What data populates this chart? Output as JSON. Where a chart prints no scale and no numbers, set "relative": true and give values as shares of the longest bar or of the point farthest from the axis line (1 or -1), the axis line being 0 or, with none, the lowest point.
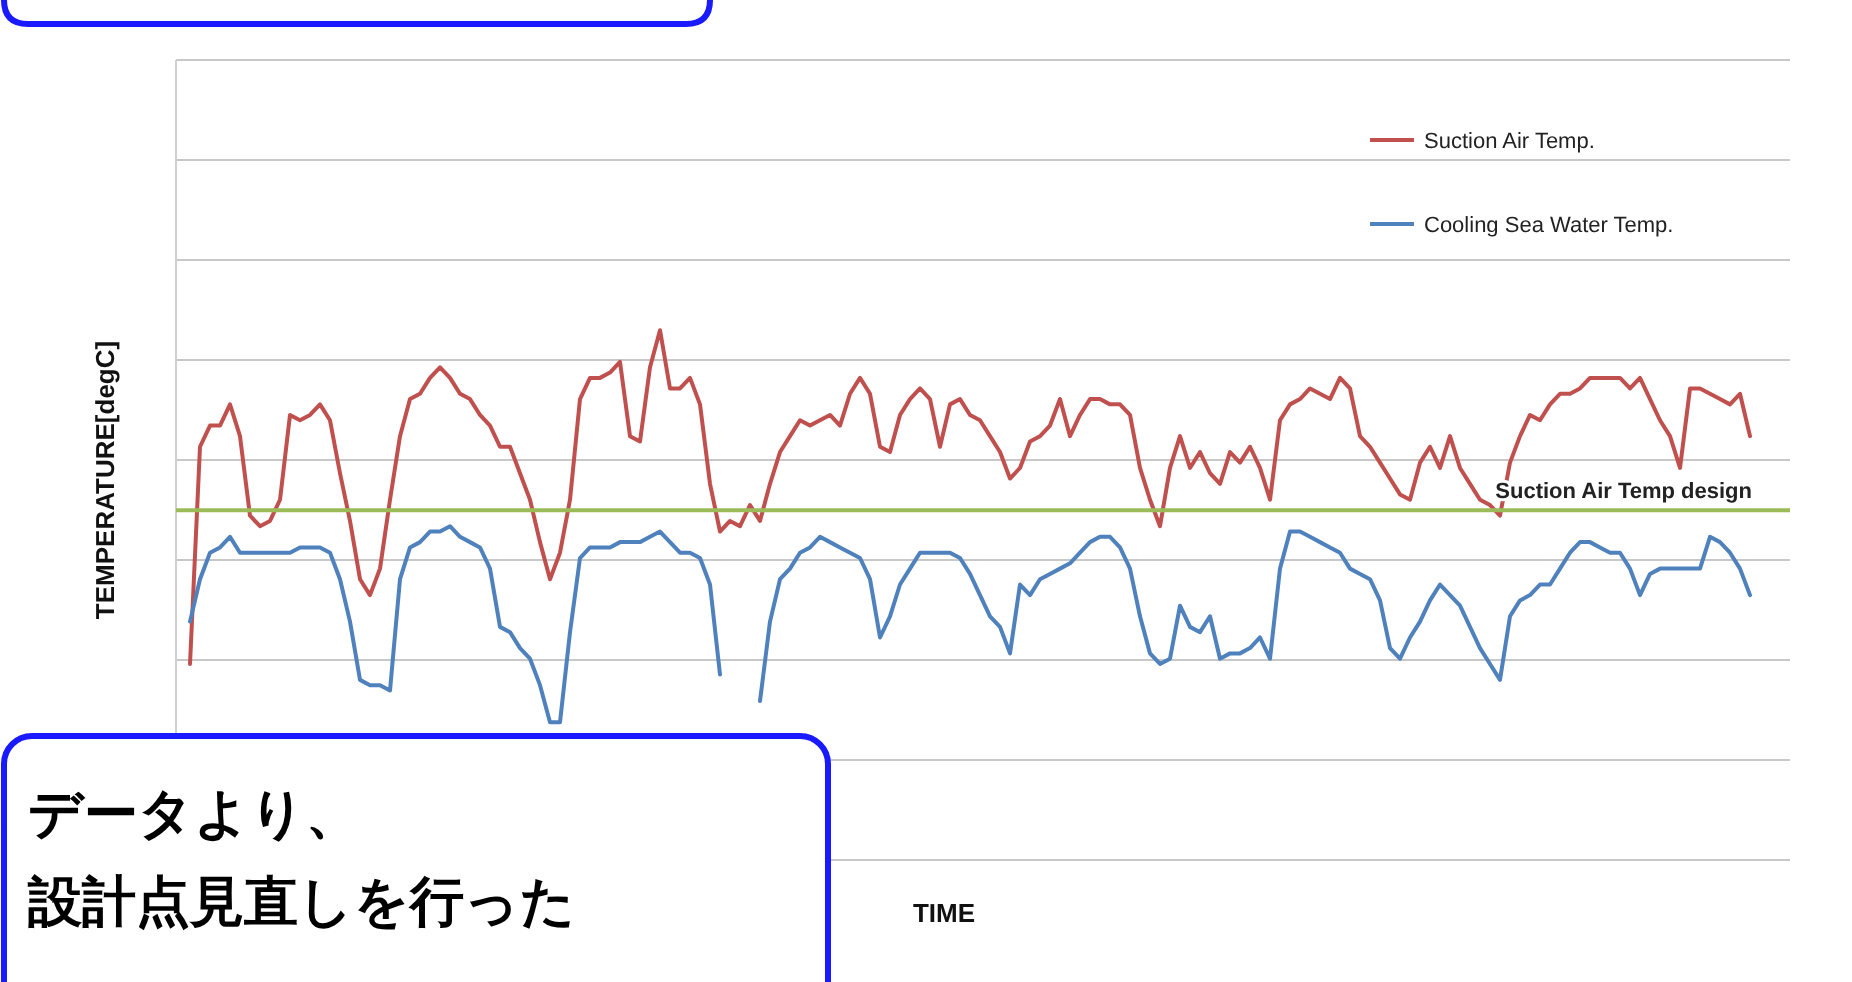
{
  "chart_data": {
    "type": "line",
    "relative": true,
    "ylabel": "TEMPERATURE[degC]",
    "xlabel": "TIME",
    "grid": "y",
    "legend": "top right",
    "line_style": "solid",
    "marker": "none",
    "categories": [
      null,
      null,
      null,
      null,
      null,
      null,
      null,
      null,
      null,
      null,
      null,
      null,
      null,
      null,
      null,
      null,
      null,
      null,
      null,
      null,
      null,
      null,
      null,
      null,
      null,
      null,
      null,
      null,
      null,
      null,
      null,
      null,
      null,
      null,
      null,
      null,
      null,
      null,
      null,
      null,
      null,
      null,
      null,
      null,
      null,
      null,
      null,
      null,
      null,
      null,
      null,
      null,
      null,
      null,
      null,
      null,
      null,
      null,
      null,
      null,
      null,
      null,
      null,
      null,
      null,
      null,
      null,
      null,
      null,
      null,
      null,
      null,
      null,
      null,
      null,
      null,
      null,
      null,
      null,
      null,
      null,
      null,
      null,
      null,
      null,
      null,
      null,
      null,
      null,
      null,
      null,
      null,
      null,
      null,
      null,
      null,
      null,
      null,
      null,
      null,
      null,
      null,
      null,
      null,
      null,
      null,
      null,
      null,
      null,
      null,
      null,
      null,
      null,
      null,
      null,
      null,
      null,
      null,
      null,
      null,
      null,
      null,
      null,
      null,
      null,
      null,
      null,
      null,
      null,
      null,
      null,
      null,
      null,
      null,
      null,
      null,
      null,
      null,
      null,
      null,
      null,
      null,
      null,
      null,
      null,
      null,
      null,
      null,
      null,
      null,
      null,
      null,
      null,
      null,
      null,
      null,
      null
    ],
    "series": [
      {
        "name": "Suction Air Temp.",
        "color": "#c0504d",
        "values": [
          0.37,
          0.78,
          0.82,
          0.82,
          0.86,
          0.8,
          0.65,
          0.63,
          0.64,
          0.68,
          0.84,
          0.83,
          0.84,
          0.86,
          0.83,
          0.73,
          0.64,
          0.53,
          0.5,
          0.55,
          0.68,
          0.8,
          0.87,
          0.88,
          0.91,
          0.93,
          0.91,
          0.88,
          0.87,
          0.84,
          0.82,
          0.78,
          0.78,
          0.73,
          0.68,
          0.6,
          0.53,
          0.58,
          0.68,
          0.87,
          0.91,
          0.91,
          0.92,
          0.94,
          0.8,
          0.79,
          0.93,
          1.0,
          0.89,
          0.89,
          0.91,
          0.86,
          0.71,
          0.62,
          0.64,
          0.63,
          0.67,
          0.64,
          0.71,
          0.77,
          0.8,
          0.83,
          0.82,
          0.83,
          0.84,
          0.82,
          0.88,
          0.91,
          0.88,
          0.78,
          0.77,
          0.84,
          0.87,
          0.89,
          0.87,
          0.78,
          0.86,
          0.87,
          0.84,
          0.83,
          0.8,
          0.77,
          0.72,
          0.74,
          0.79,
          0.8,
          0.82,
          0.87,
          0.8,
          0.84,
          0.87,
          0.87,
          0.86,
          0.86,
          0.84,
          0.74,
          0.68,
          0.63,
          0.74,
          0.8,
          0.74,
          0.77,
          0.73,
          0.71,
          0.77,
          0.75,
          0.78,
          0.74,
          0.68,
          0.83,
          0.86,
          0.87,
          0.89,
          0.88,
          0.87,
          0.91,
          0.89,
          0.8,
          0.78,
          0.75,
          0.72,
          0.69,
          0.68,
          0.75,
          0.78,
          0.74,
          0.8,
          0.74,
          0.71,
          0.68,
          0.67,
          0.65,
          0.75,
          0.8,
          0.84,
          0.83,
          0.86,
          0.88,
          0.88,
          0.89,
          0.91,
          0.91,
          0.91,
          0.91,
          0.89,
          0.91,
          0.87,
          0.83,
          0.8,
          0.74,
          0.89,
          0.89,
          0.88,
          0.87,
          0.86,
          0.88,
          0.8
        ]
      },
      {
        "name": "Cooling Sea Water Temp.",
        "color": "#4f81bd",
        "values": [
          0.45,
          0.53,
          0.58,
          0.59,
          0.61,
          0.58,
          0.58,
          0.58,
          0.58,
          0.58,
          0.58,
          0.59,
          0.59,
          0.59,
          0.58,
          0.53,
          0.45,
          0.34,
          0.33,
          0.33,
          0.32,
          0.53,
          0.59,
          0.6,
          0.62,
          0.62,
          0.63,
          0.61,
          0.6,
          0.59,
          0.55,
          0.44,
          0.43,
          0.4,
          0.38,
          0.33,
          0.26,
          0.26,
          0.43,
          0.57,
          0.59,
          0.59,
          0.59,
          0.6,
          0.6,
          0.6,
          0.61,
          0.62,
          0.6,
          0.58,
          0.58,
          0.57,
          0.52,
          0.35,
          null,
          null,
          null,
          0.3,
          0.45,
          0.53,
          0.55,
          0.58,
          0.59,
          0.61,
          0.6,
          0.59,
          0.58,
          0.57,
          0.53,
          0.42,
          0.46,
          0.52,
          0.55,
          0.58,
          0.58,
          0.58,
          0.58,
          0.57,
          0.54,
          0.5,
          0.46,
          0.44,
          0.39,
          0.52,
          0.5,
          0.53,
          0.54,
          0.55,
          0.56,
          0.58,
          0.6,
          0.61,
          0.61,
          0.59,
          0.55,
          0.46,
          0.39,
          0.37,
          0.38,
          0.48,
          0.44,
          0.43,
          0.46,
          0.38,
          0.39,
          0.39,
          0.4,
          0.42,
          0.38,
          0.55,
          0.62,
          0.62,
          0.61,
          0.6,
          0.59,
          0.58,
          0.55,
          0.54,
          0.53,
          0.49,
          0.4,
          0.38,
          0.42,
          0.45,
          0.49,
          0.52,
          0.5,
          0.48,
          0.44,
          0.4,
          0.37,
          0.34,
          0.46,
          0.49,
          0.5,
          0.52,
          0.52,
          0.55,
          0.58,
          0.6,
          0.6,
          0.59,
          0.58,
          0.58,
          0.55,
          0.5,
          0.54,
          0.55,
          0.55,
          0.55,
          0.55,
          0.55,
          0.61,
          0.6,
          0.58,
          0.55,
          0.5
        ]
      }
    ],
    "ref_lines": [
      {
        "axis": "y",
        "value": 0.66,
        "label": "Suction Air Temp design",
        "color": "#9bbb59"
      }
    ],
    "annotations": [
      "データより、",
      "設計点見直しを行った"
    ]
  }
}
